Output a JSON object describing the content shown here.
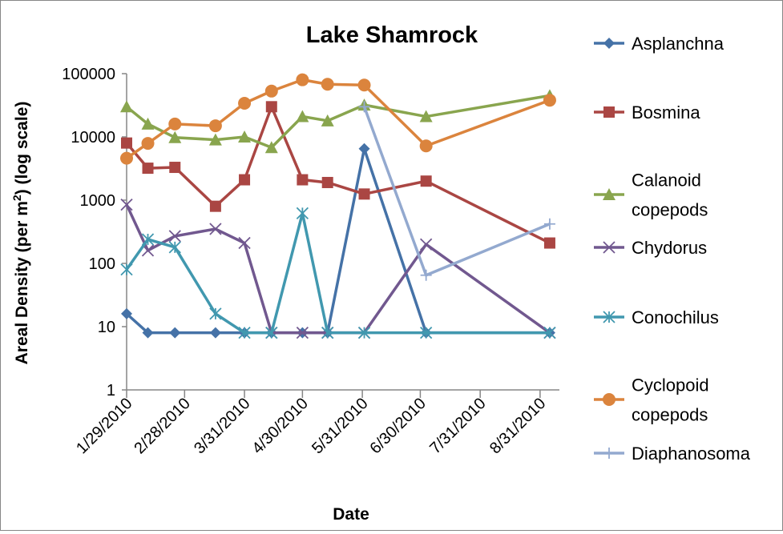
{
  "chart_data": {
    "type": "line",
    "title": "Lake Shamrock",
    "xlabel": "Date",
    "ylabel": "Areal Density (per m2) (log scale)",
    "ylabel_parts": {
      "before": "Areal Density (per m",
      "sup": "2",
      "after": ") (log scale)"
    },
    "yscale": "log",
    "ylim": [
      1,
      100000
    ],
    "yticks": [
      "1",
      "10",
      "100",
      "1000",
      "10000",
      "100000"
    ],
    "yticks_values": [
      1,
      10,
      100,
      1000,
      10000,
      100000
    ],
    "xlim": [
      "2010-01-29",
      "2010-09-10"
    ],
    "xticks": [
      "1/29/2010",
      "2/28/2010",
      "3/31/2010",
      "4/30/2010",
      "5/31/2010",
      "6/30/2010",
      "7/31/2010",
      "8/31/2010"
    ],
    "xticks_values": [
      "2010-01-29",
      "2010-02-28",
      "2010-03-31",
      "2010-04-30",
      "2010-05-31",
      "2010-06-30",
      "2010-07-31",
      "2010-08-31"
    ],
    "grid": false,
    "legend_position": "right",
    "x": [
      "2010-01-29",
      "2010-02-09",
      "2010-02-23",
      "2010-03-16",
      "2010-03-31",
      "2010-04-14",
      "2010-04-30",
      "2010-05-13",
      "2010-06-01",
      "2010-07-03",
      "2010-09-05"
    ],
    "series": [
      {
        "name": "Asplanchna",
        "legend_lines": [
          "Asplanchna"
        ],
        "color": "#4572A7",
        "marker": "diamond",
        "values": [
          16,
          8,
          8,
          8,
          8,
          8,
          8,
          8,
          6500,
          8,
          8
        ]
      },
      {
        "name": "Bosmina",
        "legend_lines": [
          "Bosmina"
        ],
        "color": "#AA4643",
        "marker": "square",
        "values": [
          8000,
          3200,
          3300,
          800,
          2100,
          30000,
          2100,
          1900,
          1250,
          2000,
          210
        ]
      },
      {
        "name": "Calanoid copepods",
        "legend_lines": [
          "Calanoid",
          "copepods"
        ],
        "color": "#89A54E",
        "marker": "triangle",
        "values": [
          30000,
          16000,
          9800,
          9000,
          10000,
          6800,
          21000,
          18000,
          32000,
          21000,
          45000
        ]
      },
      {
        "name": "Chydorus",
        "legend_lines": [
          "Chydorus"
        ],
        "color": "#71588F",
        "marker": "x",
        "values": [
          850,
          160,
          270,
          350,
          210,
          8,
          8,
          8,
          8,
          200,
          8
        ]
      },
      {
        "name": "Conochilus",
        "legend_lines": [
          "Conochilus"
        ],
        "color": "#4198AF",
        "marker": "star",
        "values": [
          80,
          240,
          180,
          16,
          8,
          8,
          620,
          8,
          8,
          8,
          8
        ]
      },
      {
        "name": "Cyclopoid copepods",
        "legend_lines": [
          "Cyclopoid",
          "copepods"
        ],
        "color": "#DB843D",
        "marker": "circle",
        "values": [
          4600,
          7900,
          16000,
          15000,
          34000,
          53000,
          80000,
          68000,
          66000,
          7200,
          38000
        ]
      },
      {
        "name": "Diaphanosoma",
        "legend_lines": [
          "Diaphanosoma"
        ],
        "color": "#93A9CF",
        "marker": "plus",
        "values": [
          null,
          null,
          null,
          null,
          null,
          null,
          null,
          null,
          30000,
          65,
          420
        ]
      }
    ]
  }
}
